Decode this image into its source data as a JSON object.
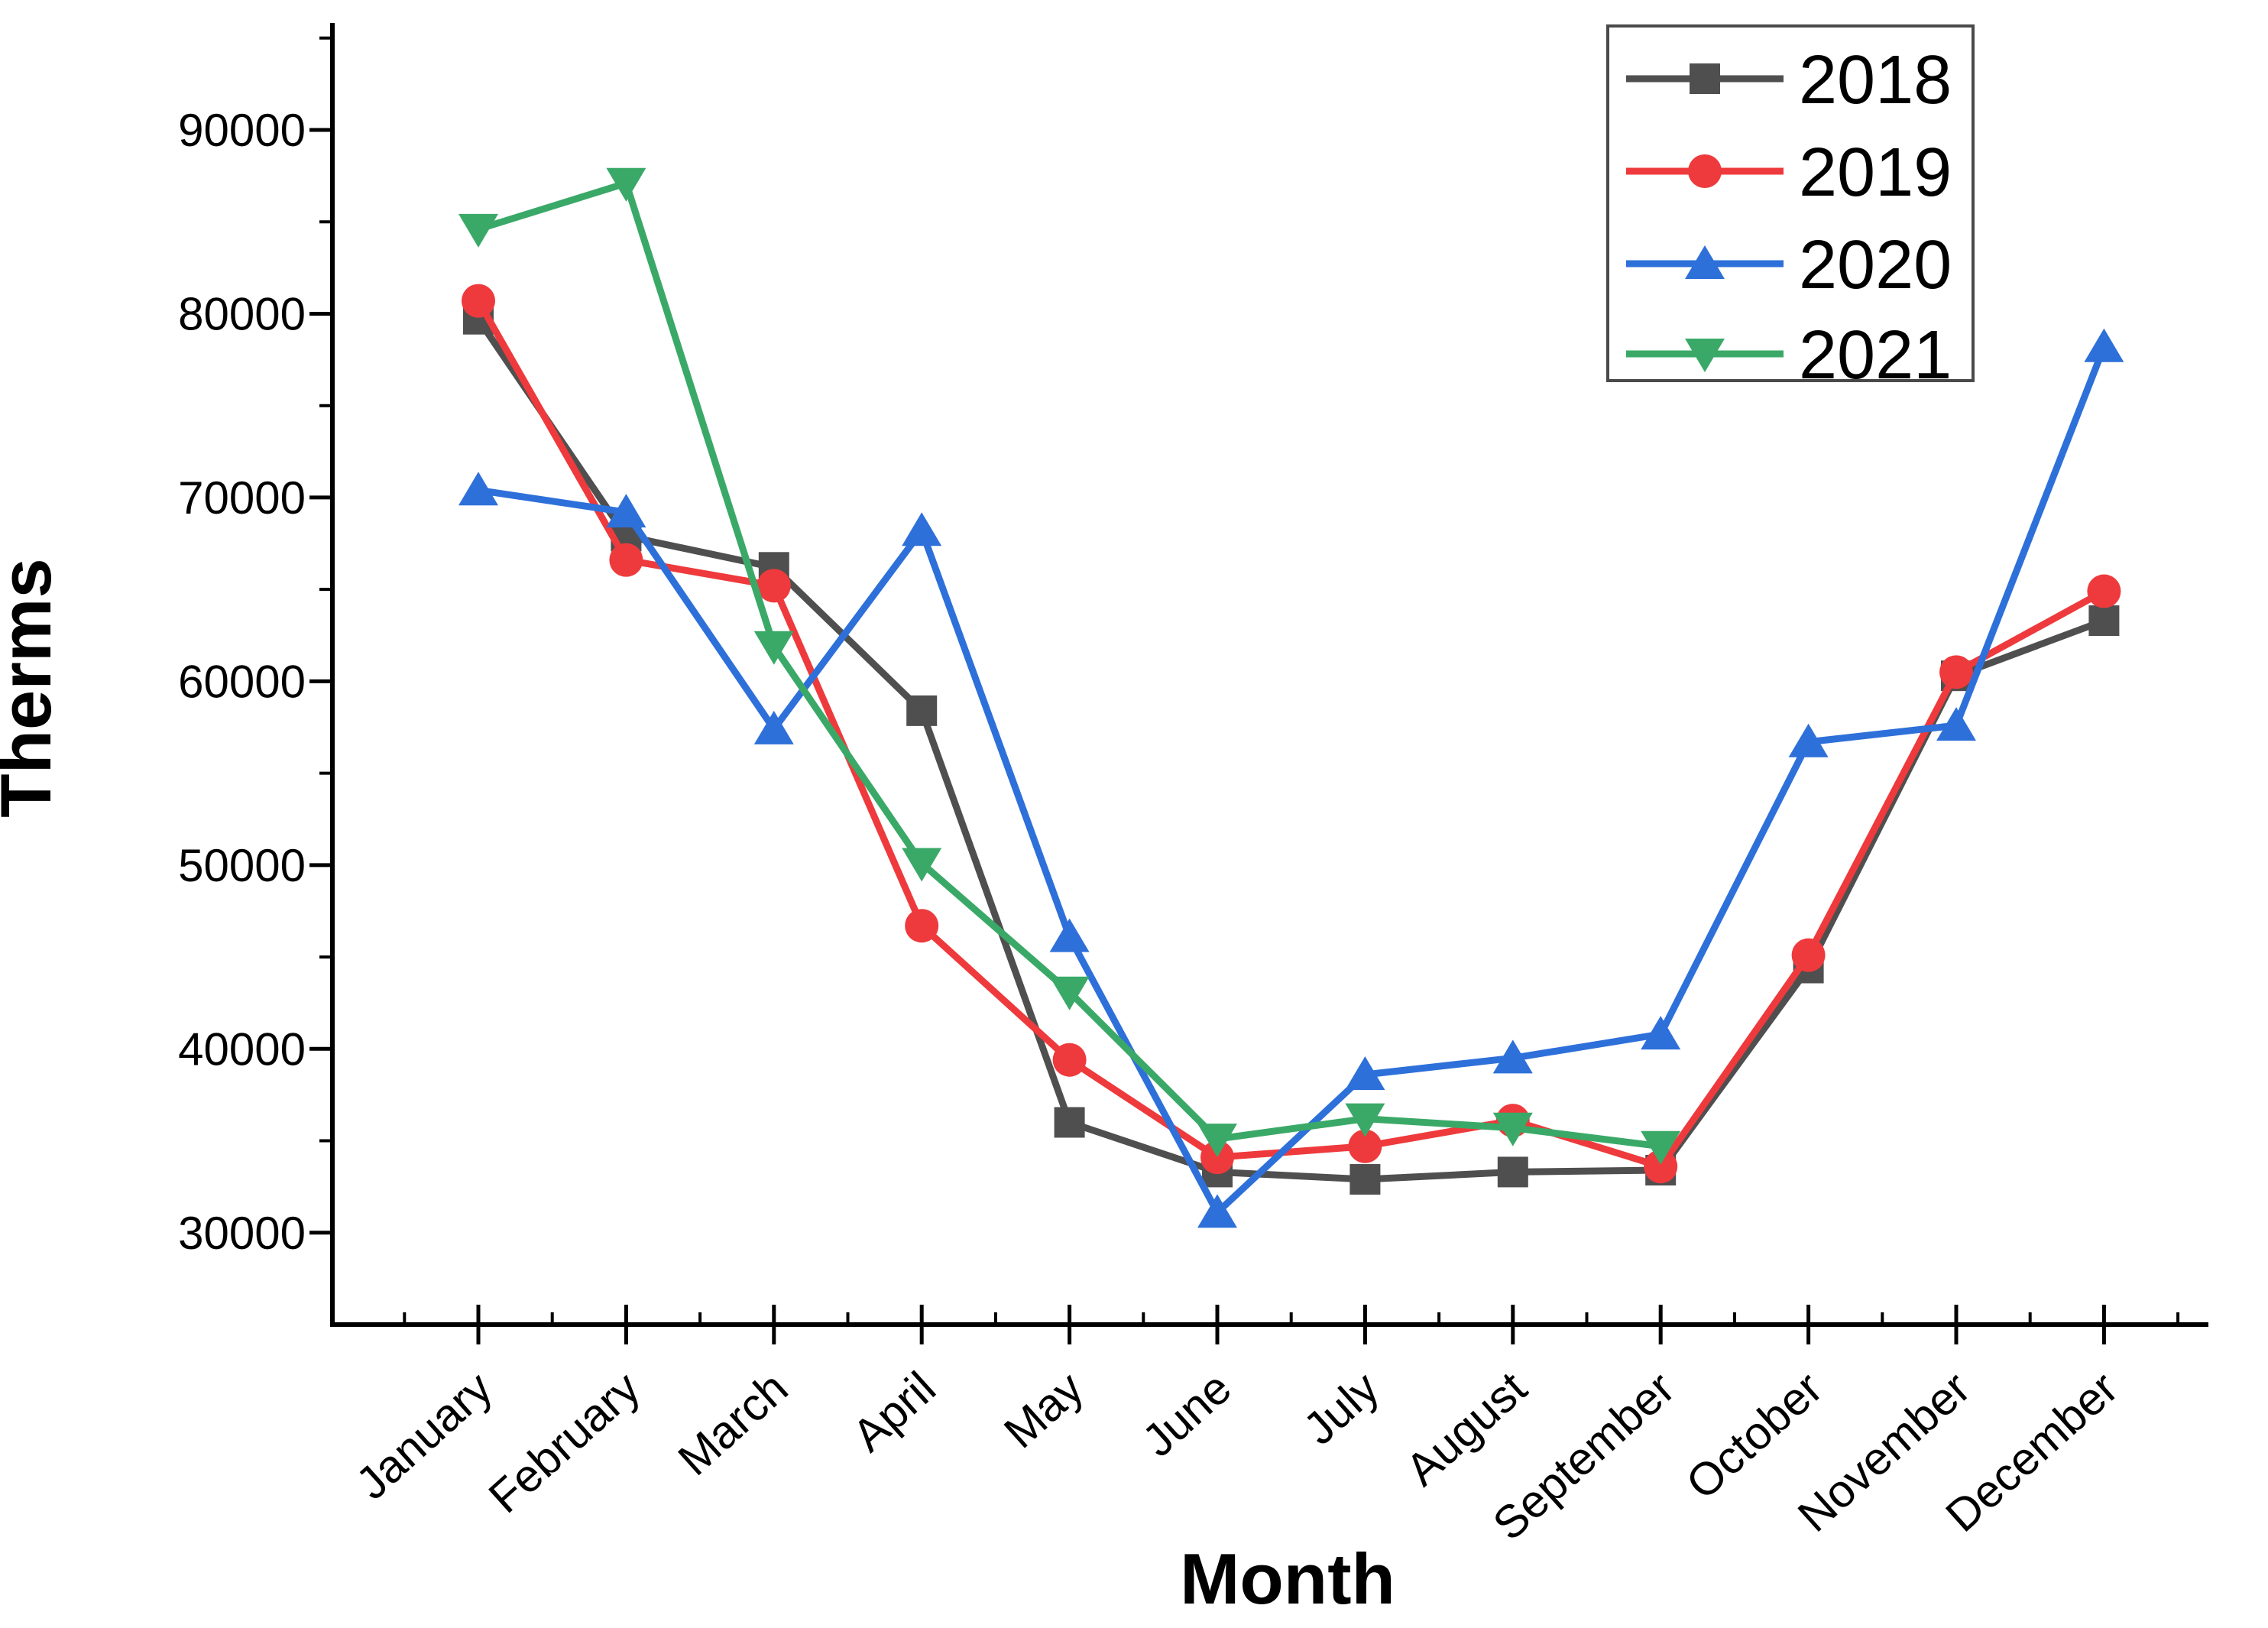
{
  "figure": {
    "background_color": "#ffffff",
    "axis_color": "#000000"
  },
  "chart_data": {
    "type": "line",
    "title": "",
    "xlabel": "Month",
    "ylabel": "Therms",
    "categories": [
      "January",
      "February",
      "March",
      "April",
      "May",
      "June",
      "July",
      "August",
      "September",
      "October",
      "November",
      "December"
    ],
    "x_tick_rotation_deg": -42,
    "ylim": [
      25000,
      95000
    ],
    "yticks_labeled": [
      30000,
      40000,
      50000,
      60000,
      70000,
      80000,
      90000
    ],
    "ytick_labels": [
      "30000",
      "40000",
      "50000",
      "60000",
      "70000",
      "80000",
      "90000"
    ],
    "yticks_minor": [
      35000,
      45000,
      55000,
      65000,
      75000,
      85000,
      95000
    ],
    "grid": false,
    "legend": {
      "position": "top-right",
      "border_color": "#4a4a4a",
      "entries": [
        "2018",
        "2019",
        "2020",
        "2021"
      ]
    },
    "series": [
      {
        "name": "2018",
        "color": "#4f4f4f",
        "marker": "square",
        "values": [
          79700,
          67900,
          66200,
          58400,
          36000,
          33300,
          32900,
          33300,
          33400,
          44400,
          60300,
          63300
        ]
      },
      {
        "name": "2019",
        "color": "#ee3a3c",
        "marker": "circle",
        "values": [
          80700,
          66600,
          65200,
          46700,
          39400,
          34100,
          34700,
          36100,
          33600,
          45100,
          60500,
          64900
        ]
      },
      {
        "name": "2020",
        "color": "#2e70d9",
        "marker": "triangle-up",
        "values": [
          70400,
          69200,
          57400,
          68200,
          46100,
          31100,
          38600,
          39500,
          40800,
          56700,
          57600,
          78200
        ]
      },
      {
        "name": "2021",
        "color": "#3aa968",
        "marker": "triangle-down",
        "values": [
          84600,
          87100,
          61900,
          50100,
          43100,
          35100,
          36200,
          35700,
          34700,
          null,
          null,
          null
        ]
      }
    ]
  }
}
